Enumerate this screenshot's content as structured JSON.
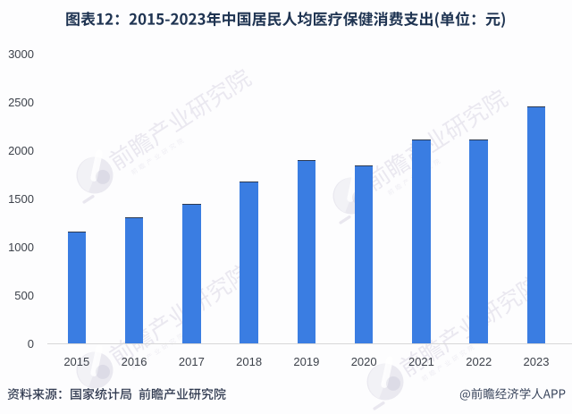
{
  "figure": {
    "title": "图表12：2015-2023年中国居民人均医疗保健消费支出(单位：元)",
    "source_note": "资料来源：国家统计局 前瞻产业研究院",
    "branding": "@前瞻经济学人APP",
    "watermark_text": "前瞻产业研究院"
  },
  "chart_data": {
    "type": "bar",
    "title": "图表12：2015-2023年中国居民人均医疗保健消费支出(单位：元)",
    "xlabel": "",
    "ylabel": "",
    "unit": "元",
    "categories": [
      "2015",
      "2016",
      "2017",
      "2018",
      "2019",
      "2020",
      "2021",
      "2022",
      "2023"
    ],
    "values": [
      1166,
      1307,
      1451,
      1685,
      1902,
      1843,
      2115,
      2120,
      2460
    ],
    "ylim": [
      0,
      3000
    ],
    "yticks": [
      0,
      500,
      1000,
      1500,
      2000,
      2500,
      3000
    ],
    "grid": false,
    "legend": false,
    "colors": {
      "bar": "#3a7de2",
      "bar_top_edge": "#2c3a52",
      "axis_line": "#d8d8d8",
      "tick_label": "#3d424b",
      "title": "#1f3452",
      "source_note": "#303a50",
      "branding": "#39455c",
      "background": "#fdfdfe",
      "watermark": "#e8e6ee"
    }
  }
}
